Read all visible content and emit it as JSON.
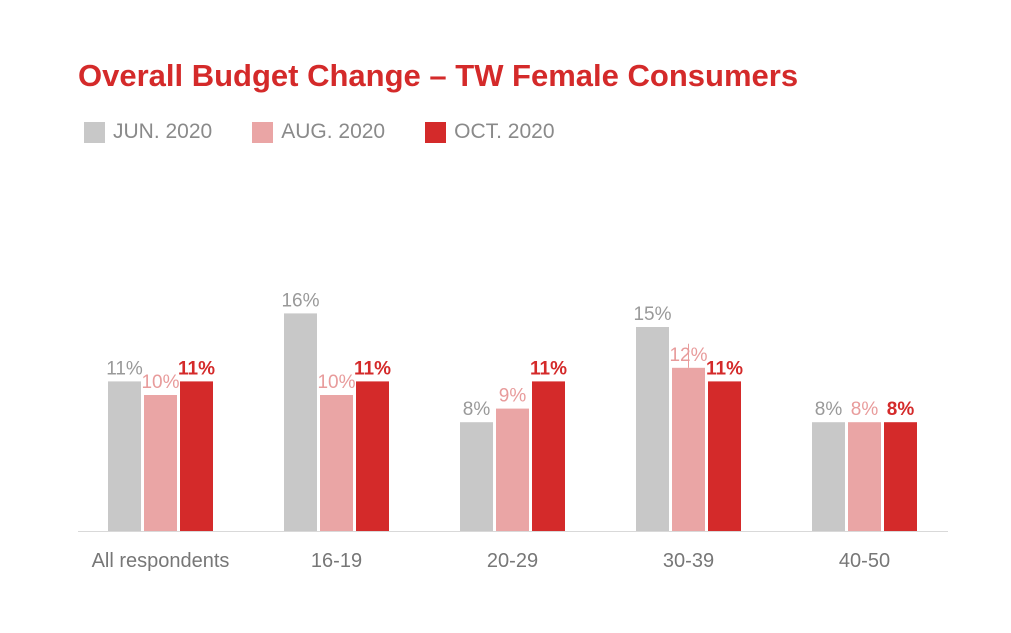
{
  "chart_data": {
    "type": "bar",
    "title": "Overall Budget Change – TW Female Consumers",
    "categories": [
      "All respondents",
      "16-19",
      "20-29",
      "30-39",
      "40-50"
    ],
    "series": [
      {
        "name": "JUN. 2020",
        "color": "#c8c8c8",
        "label_color": "#999999",
        "values": [
          11,
          16,
          8,
          15,
          8
        ],
        "labels": [
          "11%",
          "16%",
          "8%",
          "15%",
          "8%"
        ]
      },
      {
        "name": "AUG. 2020",
        "color": "#eaa5a5",
        "label_color": "#e89b9b",
        "values": [
          10,
          10,
          9,
          12,
          8
        ],
        "labels": [
          "10%",
          "10%",
          "9%",
          "12%",
          "8%"
        ]
      },
      {
        "name": "OCT. 2020",
        "color": "#d42a2a",
        "label_color": "#d42a2a",
        "values": [
          11,
          11,
          11,
          11,
          8
        ],
        "labels": [
          "11%",
          "11%",
          "11%",
          "11%",
          "8%"
        ]
      }
    ],
    "ylim": [
      0,
      16
    ],
    "xlabel": "",
    "ylabel": "",
    "grid": false,
    "legend": "top-left"
  }
}
